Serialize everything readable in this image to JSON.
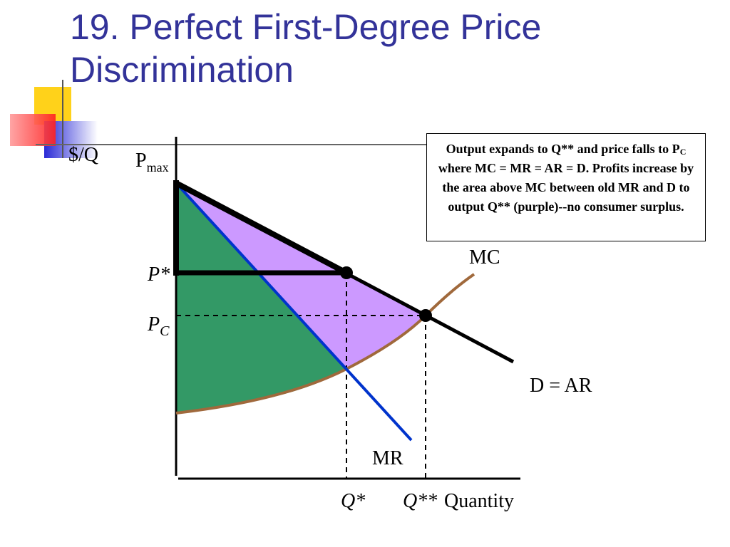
{
  "header": {
    "title": "19. Perfect First-Degree Price Discrimination"
  },
  "diagram": {
    "y_axis_label": "$/Q",
    "x_axis_label": "Quantity",
    "pmax": {
      "main": "P",
      "sub": "max"
    },
    "p_star": "P*",
    "pc": {
      "main": "P",
      "sub": "C"
    },
    "mc_label": "MC",
    "demand_label": "D = AR",
    "mr_label": "MR",
    "q_star": "Q*",
    "q_star_star": "Q**"
  },
  "note": {
    "before": "Output expands to Q** and price falls to P",
    "sub": "C",
    "after": " where MC = MR = AR = D. Profits increase by the area above MC between old MR and D to output Q** (purple)--no consumer surplus."
  }
}
